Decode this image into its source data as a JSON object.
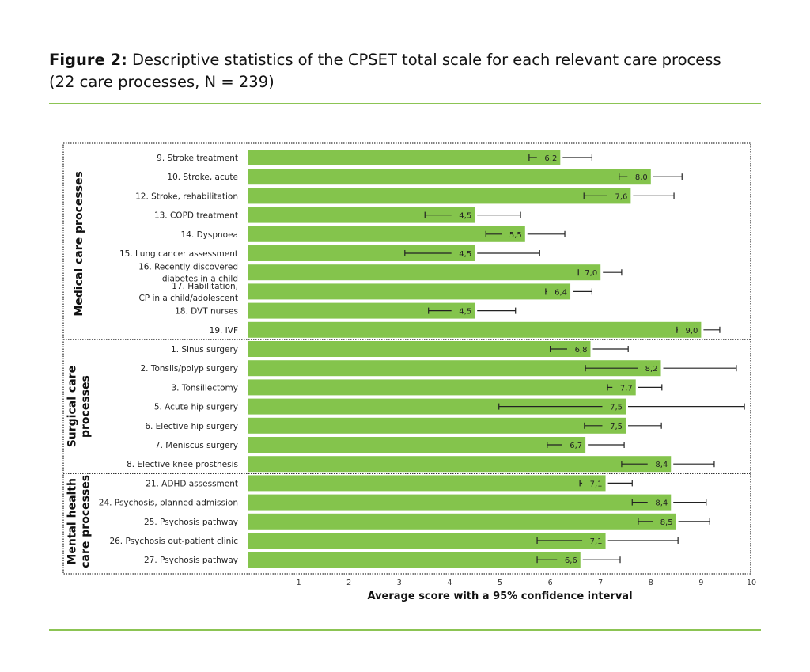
{
  "figure": {
    "label": "Figure 2:",
    "title_line1": "Descriptive statistics of the CPSET total scale for each relevant care process",
    "title_line2": "(22 care processes, N = 239)"
  },
  "chart_data": {
    "type": "bar",
    "orientation": "horizontal",
    "xlabel": "Average score with a 95% confidence interval",
    "xlim": [
      0,
      10
    ],
    "xticks": [
      "1",
      "2",
      "3",
      "4",
      "5",
      "6",
      "7",
      "8",
      "9",
      "10"
    ],
    "bar_color": "#84c44c",
    "error_bar_color": "#222222",
    "grid": false,
    "groups": [
      {
        "name": "Medical care processes",
        "rows": [
          {
            "label": "9. Stroke treatment",
            "value": 6.2,
            "value_label": "6,2",
            "ci": [
              5.58,
              6.83
            ]
          },
          {
            "label": "10. Stroke, acute",
            "value": 8.0,
            "value_label": "8,0",
            "ci": [
              7.37,
              8.62
            ]
          },
          {
            "label": "12. Stroke, rehabilitation",
            "value": 7.6,
            "value_label": "7,6",
            "ci": [
              6.67,
              8.46
            ]
          },
          {
            "label": "13. COPD treatment",
            "value": 4.5,
            "value_label": "4,5",
            "ci": [
              3.51,
              5.41
            ]
          },
          {
            "label": "14. Dyspnoea",
            "value": 5.5,
            "value_label": "5,5",
            "ci": [
              4.72,
              6.29
            ]
          },
          {
            "label": "15. Lung cancer assessment",
            "value": 4.5,
            "value_label": "4,5",
            "ci": [
              3.11,
              5.79
            ]
          },
          {
            "label": "16. Recently discovered\ndiabetes in a child",
            "value": 7.0,
            "value_label": "7,0",
            "ci": [
              6.56,
              7.42
            ]
          },
          {
            "label": "17. Habilitation,\nCP in a child/adolescent",
            "value": 6.4,
            "value_label": "6,4",
            "ci": [
              5.91,
              6.83
            ]
          },
          {
            "label": "18. DVT nurses",
            "value": 4.5,
            "value_label": "4,5",
            "ci": [
              3.58,
              5.31
            ]
          },
          {
            "label": "19. IVF",
            "value": 9.0,
            "value_label": "9,0",
            "ci": [
              8.52,
              9.37
            ]
          }
        ]
      },
      {
        "name": "Surgical care\nprocesses",
        "rows": [
          {
            "label": "1. Sinus surgery",
            "value": 6.8,
            "value_label": "6,8",
            "ci": [
              6.0,
              7.55
            ]
          },
          {
            "label": "2. Tonsils/polyp surgery",
            "value": 8.2,
            "value_label": "8,2",
            "ci": [
              6.7,
              9.7
            ]
          },
          {
            "label": "3. Tonsillectomy",
            "value": 7.7,
            "value_label": "7,7",
            "ci": [
              7.14,
              8.22
            ]
          },
          {
            "label": "5. Acute hip surgery",
            "value": 7.5,
            "value_label": "7,5",
            "ci": [
              4.98,
              9.86
            ]
          },
          {
            "label": "6. Elective hip surgery",
            "value": 7.5,
            "value_label": "7,5",
            "ci": [
              6.68,
              8.21
            ]
          },
          {
            "label": "7. Meniscus surgery",
            "value": 6.7,
            "value_label": "6,7",
            "ci": [
              5.94,
              7.47
            ]
          },
          {
            "label": "8. Elective knee prosthesis",
            "value": 8.4,
            "value_label": "8,4",
            "ci": [
              7.42,
              9.26
            ]
          }
        ]
      },
      {
        "name": "Mental health\ncare processes",
        "rows": [
          {
            "label": "21. ADHD assessment",
            "value": 7.1,
            "value_label": "7,1",
            "ci": [
              6.59,
              7.63
            ]
          },
          {
            "label": "24. Psychosis, planned admission",
            "value": 8.4,
            "value_label": "8,4",
            "ci": [
              7.63,
              9.1
            ]
          },
          {
            "label": "25. Psychosis pathway",
            "value": 8.5,
            "value_label": "8,5",
            "ci": [
              7.75,
              9.17
            ]
          },
          {
            "label": "26. Psychosis out-patient clinic",
            "value": 7.1,
            "value_label": "7,1",
            "ci": [
              5.74,
              8.54
            ]
          },
          {
            "label": "27. Psychosis pathway",
            "value": 6.6,
            "value_label": "6,6",
            "ci": [
              5.74,
              7.39
            ]
          }
        ]
      }
    ]
  }
}
